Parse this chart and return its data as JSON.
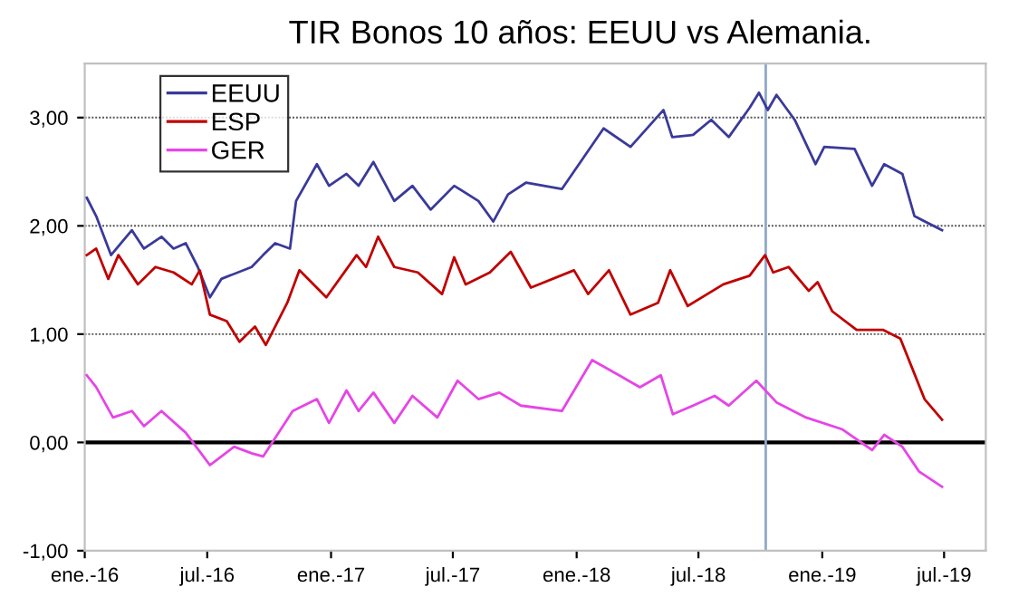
{
  "chart_data": {
    "type": "line",
    "title": "TIR Bonos 10 años: EEUU vs Alemania.",
    "xlim": [
      "2016-01-01",
      "2019-09-01"
    ],
    "xticks": [
      {
        "value": "2016-01-01",
        "label": "ene.-16"
      },
      {
        "value": "2016-07-01",
        "label": "jul.-16"
      },
      {
        "value": "2017-01-01",
        "label": "ene.-17"
      },
      {
        "value": "2017-07-01",
        "label": "jul.-17"
      },
      {
        "value": "2018-01-01",
        "label": "ene.-18"
      },
      {
        "value": "2018-07-01",
        "label": "jul.-18"
      },
      {
        "value": "2019-01-01",
        "label": "ene.-19"
      },
      {
        "value": "2019-07-01",
        "label": "jul.-19"
      }
    ],
    "ylim": [
      -1,
      3.5
    ],
    "yticks": [
      {
        "value": -1,
        "label": "-1,00"
      },
      {
        "value": 0,
        "label": "0,00"
      },
      {
        "value": 1,
        "label": "1,00"
      },
      {
        "value": 2,
        "label": "2,00"
      },
      {
        "value": 3,
        "label": "3,00"
      }
    ],
    "grid": "y",
    "legend": "top left",
    "marker": "none",
    "line_style": "solid",
    "ref_lines": [
      {
        "axis": "y",
        "value": 0,
        "color": "#000000",
        "line_style": "solid"
      },
      {
        "axis": "x",
        "value": "2018-10-09",
        "color": "#8fa8c8",
        "line_style": "solid"
      }
    ],
    "series": [
      {
        "name": "EEUU",
        "color": "#3a3a9a",
        "x": [
          "2016-01-04",
          "2016-01-18",
          "2016-02-09",
          "2016-03-11",
          "2016-03-29",
          "2016-04-24",
          "2016-05-12",
          "2016-05-30",
          "2016-06-17",
          "2016-07-05",
          "2016-07-22",
          "2016-09-05",
          "2016-09-22",
          "2016-10-10",
          "2016-11-01",
          "2016-11-10",
          "2016-12-11",
          "2016-12-29",
          "2017-01-24",
          "2017-02-11",
          "2017-03-05",
          "2017-04-05",
          "2017-05-02",
          "2017-05-29",
          "2017-07-03",
          "2017-08-08",
          "2017-08-30",
          "2017-09-21",
          "2017-10-18",
          "2017-12-10",
          "2018-01-10",
          "2018-02-10",
          "2018-03-22",
          "2018-05-10",
          "2018-05-23",
          "2018-06-23",
          "2018-07-20",
          "2018-08-15",
          "2018-09-15",
          "2018-09-29",
          "2018-10-12",
          "2018-10-25",
          "2018-11-21",
          "2018-12-22",
          "2019-01-04",
          "2019-02-18",
          "2019-03-16",
          "2019-04-03",
          "2019-04-30",
          "2019-05-18",
          "2019-06-28"
        ],
        "values": [
          2.26,
          2.09,
          1.73,
          1.96,
          1.79,
          1.9,
          1.79,
          1.84,
          1.62,
          1.34,
          1.51,
          1.62,
          1.73,
          1.84,
          1.79,
          2.23,
          2.57,
          2.37,
          2.48,
          2.37,
          2.59,
          2.23,
          2.37,
          2.15,
          2.37,
          2.23,
          2.04,
          2.29,
          2.4,
          2.34,
          2.62,
          2.9,
          2.73,
          3.07,
          2.82,
          2.84,
          2.98,
          2.82,
          3.09,
          3.23,
          3.07,
          3.21,
          2.98,
          2.57,
          2.73,
          2.71,
          2.37,
          2.57,
          2.48,
          2.09,
          1.96
        ]
      },
      {
        "name": "ESP",
        "color": "#c00000",
        "x": [
          "2016-01-04",
          "2016-01-18",
          "2016-02-05",
          "2016-02-20",
          "2016-03-20",
          "2016-04-15",
          "2016-05-12",
          "2016-06-08",
          "2016-06-20",
          "2016-07-05",
          "2016-07-30",
          "2016-08-18",
          "2016-09-10",
          "2016-09-26",
          "2016-10-28",
          "2016-11-15",
          "2016-12-25",
          "2017-02-08",
          "2017-02-22",
          "2017-03-12",
          "2017-04-05",
          "2017-05-10",
          "2017-06-15",
          "2017-07-03",
          "2017-07-20",
          "2017-08-25",
          "2017-09-25",
          "2017-10-25",
          "2017-12-28",
          "2018-01-18",
          "2018-02-18",
          "2018-03-22",
          "2018-05-02",
          "2018-05-20",
          "2018-06-15",
          "2018-08-07",
          "2018-09-15",
          "2018-10-08",
          "2018-10-20",
          "2018-11-12",
          "2018-12-12",
          "2018-12-25",
          "2019-01-16",
          "2019-02-21",
          "2019-04-01",
          "2019-04-27",
          "2019-05-15",
          "2019-06-02",
          "2019-06-28"
        ],
        "values": [
          1.73,
          1.79,
          1.51,
          1.73,
          1.46,
          1.62,
          1.57,
          1.46,
          1.59,
          1.18,
          1.12,
          0.93,
          1.07,
          0.9,
          1.29,
          1.59,
          1.34,
          1.73,
          1.62,
          1.9,
          1.62,
          1.57,
          1.37,
          1.71,
          1.46,
          1.57,
          1.76,
          1.43,
          1.59,
          1.37,
          1.59,
          1.18,
          1.29,
          1.59,
          1.26,
          1.46,
          1.54,
          1.73,
          1.57,
          1.62,
          1.4,
          1.48,
          1.21,
          1.04,
          1.04,
          0.96,
          0.68,
          0.4,
          0.21
        ]
      },
      {
        "name": "GER",
        "color": "#e645e6",
        "x": [
          "2016-01-04",
          "2016-01-18",
          "2016-02-12",
          "2016-03-11",
          "2016-03-29",
          "2016-04-24",
          "2016-05-30",
          "2016-07-05",
          "2016-08-10",
          "2016-09-05",
          "2016-09-22",
          "2016-10-10",
          "2016-11-05",
          "2016-12-11",
          "2016-12-29",
          "2017-01-24",
          "2017-02-11",
          "2017-03-05",
          "2017-04-05",
          "2017-05-02",
          "2017-06-08",
          "2017-07-08",
          "2017-08-08",
          "2017-09-08",
          "2017-10-10",
          "2017-12-10",
          "2018-01-24",
          "2018-03-05",
          "2018-04-05",
          "2018-05-06",
          "2018-05-24",
          "2018-06-23",
          "2018-07-25",
          "2018-08-15",
          "2018-09-25",
          "2018-10-25",
          "2018-12-08",
          "2019-01-31",
          "2019-03-16",
          "2019-04-03",
          "2019-04-30",
          "2019-05-25",
          "2019-06-28"
        ],
        "values": [
          0.62,
          0.51,
          0.23,
          0.29,
          0.15,
          0.29,
          0.09,
          -0.21,
          -0.04,
          -0.1,
          -0.13,
          0.04,
          0.29,
          0.4,
          0.18,
          0.48,
          0.29,
          0.46,
          0.18,
          0.43,
          0.23,
          0.57,
          0.4,
          0.46,
          0.34,
          0.29,
          0.76,
          0.62,
          0.51,
          0.62,
          0.26,
          0.34,
          0.43,
          0.34,
          0.57,
          0.37,
          0.23,
          0.12,
          -0.07,
          0.07,
          -0.04,
          -0.27,
          -0.41
        ]
      }
    ]
  }
}
